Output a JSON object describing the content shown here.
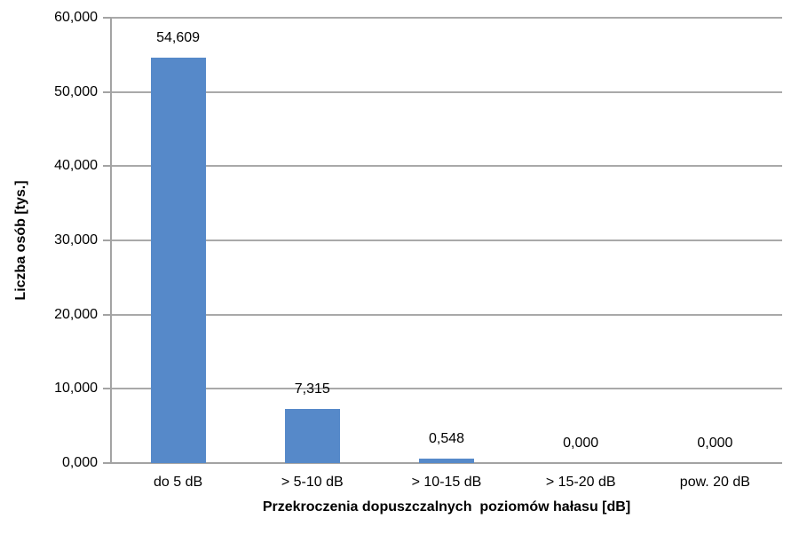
{
  "chart_data": {
    "type": "bar",
    "title": "",
    "categories": [
      "do 5 dB",
      "> 5-10 dB",
      "> 10-15 dB",
      "> 15-20 dB",
      "pow. 20 dB"
    ],
    "values": [
      54.609,
      7.315,
      0.548,
      0.0,
      0.0
    ],
    "value_labels": [
      "54,609",
      "7,315",
      "0,548",
      "0,000",
      "0,000"
    ],
    "xlabel": "Przekroczenia dopuszczalnych  poziomów hałasu [dB]",
    "ylabel": "Liczba osób [tys.]",
    "ylim": [
      0,
      60
    ],
    "ytick_interval": 10,
    "ytick_labels": [
      "0,000",
      "10,000",
      "20,000",
      "30,000",
      "40,000",
      "50,000",
      "60,000"
    ],
    "grid": true,
    "legend": "none",
    "bar_color": "#5689C9",
    "gridline_color": "#A9A9A9",
    "axis_color": "#A3A3A3",
    "text_color": "#000000",
    "background_color": "#FFFFFF"
  }
}
